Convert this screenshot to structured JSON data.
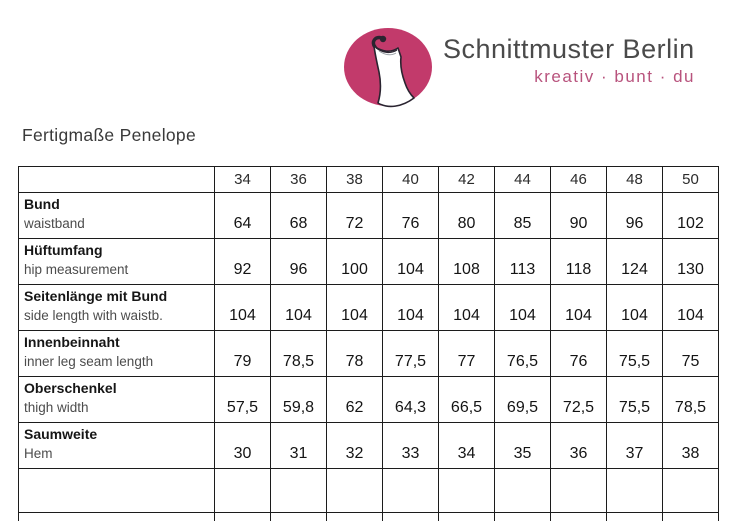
{
  "logo": {
    "brand": "Schnittmuster Berlin",
    "tagline": "kreativ · bunt · du",
    "circle_color": "#c23a6b",
    "brand_color": "#4a4a4a",
    "tagline_color": "#b8537d",
    "icon": "dress-on-hanger-icon"
  },
  "page": {
    "title": "Fertigmaße Penelope",
    "background": "#ffffff"
  },
  "table": {
    "border_color": "#1c1c1c",
    "sizes": [
      "34",
      "36",
      "38",
      "40",
      "42",
      "44",
      "46",
      "48",
      "50"
    ],
    "rows": [
      {
        "label_de": "Bund",
        "label_en": "waistband",
        "values": [
          "64",
          "68",
          "72",
          "76",
          "80",
          "85",
          "90",
          "96",
          "102"
        ]
      },
      {
        "label_de": "Hüftumfang",
        "label_en": "hip measurement",
        "values": [
          "92",
          "96",
          "100",
          "104",
          "108",
          "113",
          "118",
          "124",
          "130"
        ]
      },
      {
        "label_de": "Seitenlänge mit Bund",
        "label_en": "side length with waistb.",
        "values": [
          "104",
          "104",
          "104",
          "104",
          "104",
          "104",
          "104",
          "104",
          "104"
        ]
      },
      {
        "label_de": "Innenbeinnaht",
        "label_en": "inner leg seam length",
        "values": [
          "79",
          "78,5",
          "78",
          "77,5",
          "77",
          "76,5",
          "76",
          "75,5",
          "75"
        ]
      },
      {
        "label_de": "Oberschenkel",
        "label_en": "thigh width",
        "values": [
          "57,5",
          "59,8",
          "62",
          "64,3",
          "66,5",
          "69,5",
          "72,5",
          "75,5",
          "78,5"
        ]
      },
      {
        "label_de": "Saumweite",
        "label_en": "Hem",
        "values": [
          "30",
          "31",
          "32",
          "33",
          "34",
          "35",
          "36",
          "37",
          "38"
        ]
      }
    ]
  }
}
